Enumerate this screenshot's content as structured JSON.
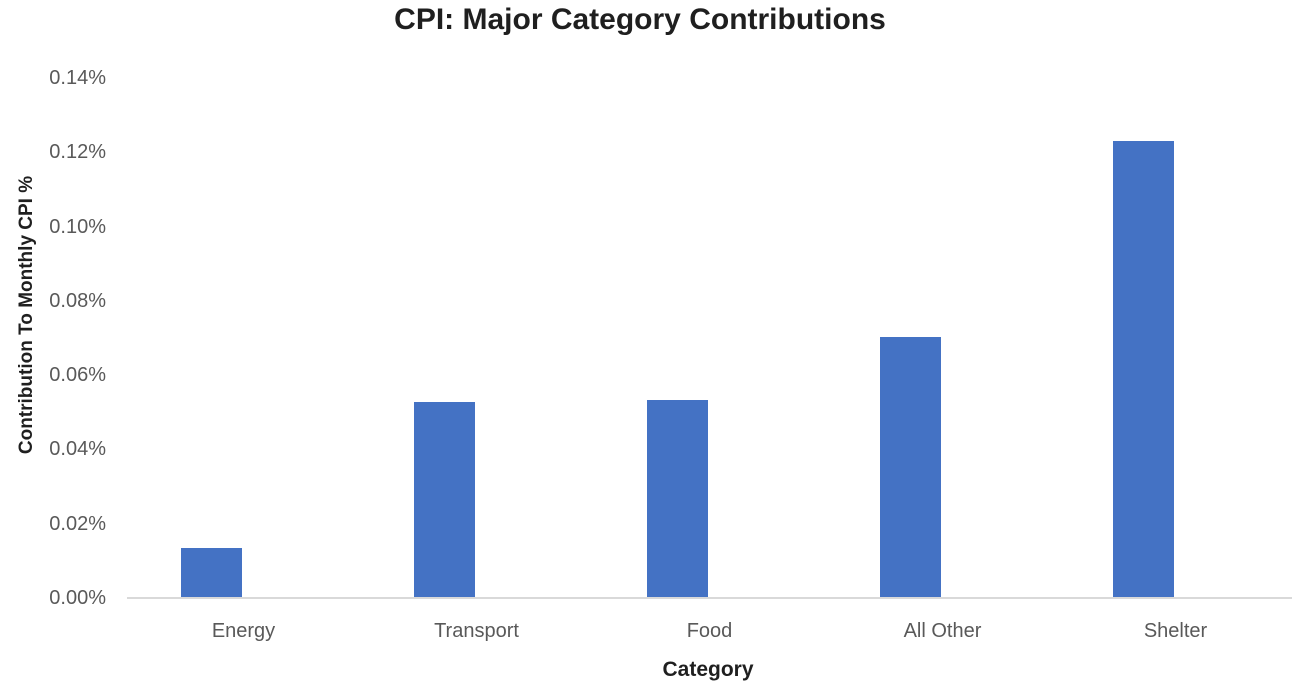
{
  "chart_data": {
    "type": "bar",
    "title": "CPI: Major Category Contributions",
    "xlabel": "Category",
    "ylabel": "Contribution To Monthly CPI %",
    "categories": [
      "Energy",
      "Transport",
      "Food",
      "All Other",
      "Shelter"
    ],
    "values": [
      0.0135,
      0.0528,
      0.0533,
      0.0703,
      0.123
    ],
    "value_unit": "percent contribution",
    "ylim": [
      0,
      0.14
    ],
    "ytick_step": 0.02,
    "ytick_labels": [
      "0.00%",
      "0.02%",
      "0.04%",
      "0.06%",
      "0.08%",
      "0.10%",
      "0.12%",
      "0.14%"
    ],
    "grid": "off",
    "legend": "none",
    "bar_color": "#4472C4",
    "axis_line_color": "#D9D9D9",
    "tick_label_color": "#595959",
    "title_color": "#1f1f1f",
    "background_color": "#ffffff"
  }
}
